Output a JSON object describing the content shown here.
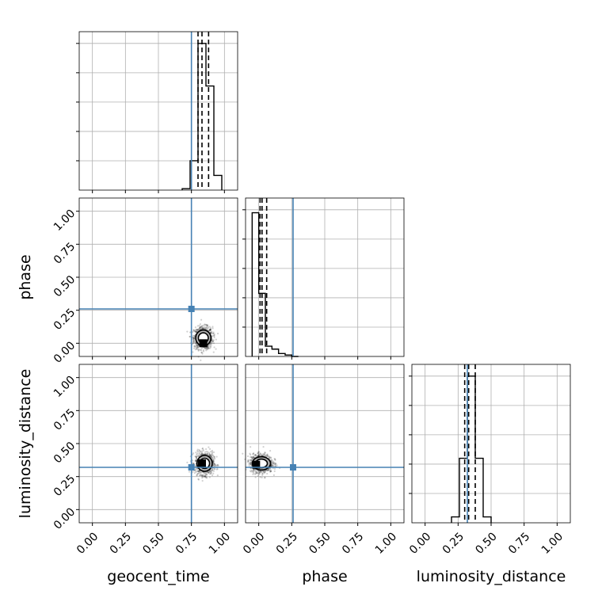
{
  "chart_data": {
    "type": "corner",
    "parameters": [
      "geocent_time",
      "phase",
      "luminosity_distance"
    ],
    "axis_range": [
      -0.1,
      1.1
    ],
    "tick_labels": [
      "0.00",
      "0.25",
      "0.50",
      "0.75",
      "1.00"
    ],
    "grid": true,
    "truth": {
      "geocent_time": 0.75,
      "phase": 0.26,
      "luminosity_distance": 0.32
    },
    "truth_color": "#4682b4",
    "marginals": {
      "geocent_time": {
        "bin_edges": [
          0.68,
          0.74,
          0.8,
          0.86,
          0.92,
          0.98
        ],
        "counts": [
          0.01,
          0.2,
          1.0,
          0.71,
          0.1
        ],
        "quantiles": [
          0.8,
          0.83,
          0.88
        ]
      },
      "phase": {
        "bin_edges": [
          -0.05,
          0.0,
          0.05,
          0.1,
          0.15,
          0.2,
          0.25,
          0.3
        ],
        "counts": [
          0.98,
          0.43,
          0.07,
          0.05,
          0.02,
          0.01,
          0.0
        ],
        "quantiles": [
          0.01,
          0.025,
          0.06
        ]
      },
      "luminosity_distance": {
        "bin_edges": [
          0.2,
          0.26,
          0.32,
          0.38,
          0.44,
          0.5
        ],
        "counts": [
          0.04,
          0.44,
          1.0,
          0.44,
          0.04
        ],
        "quantiles": [
          0.3,
          0.33,
          0.38
        ]
      }
    },
    "pairs": [
      {
        "x": "geocent_time",
        "y": "phase",
        "center": [
          0.84,
          0.04
        ],
        "spread": [
          0.05,
          0.06
        ],
        "mode": [
          0.84,
          0.0
        ]
      },
      {
        "x": "geocent_time",
        "y": "luminosity_distance",
        "center": [
          0.85,
          0.35
        ],
        "spread": [
          0.05,
          0.06
        ],
        "mode": [
          0.83,
          0.35
        ]
      },
      {
        "x": "phase",
        "y": "luminosity_distance",
        "center": [
          0.02,
          0.35
        ],
        "spread": [
          0.06,
          0.05
        ],
        "mode": [
          -0.02,
          0.34
        ]
      }
    ]
  }
}
